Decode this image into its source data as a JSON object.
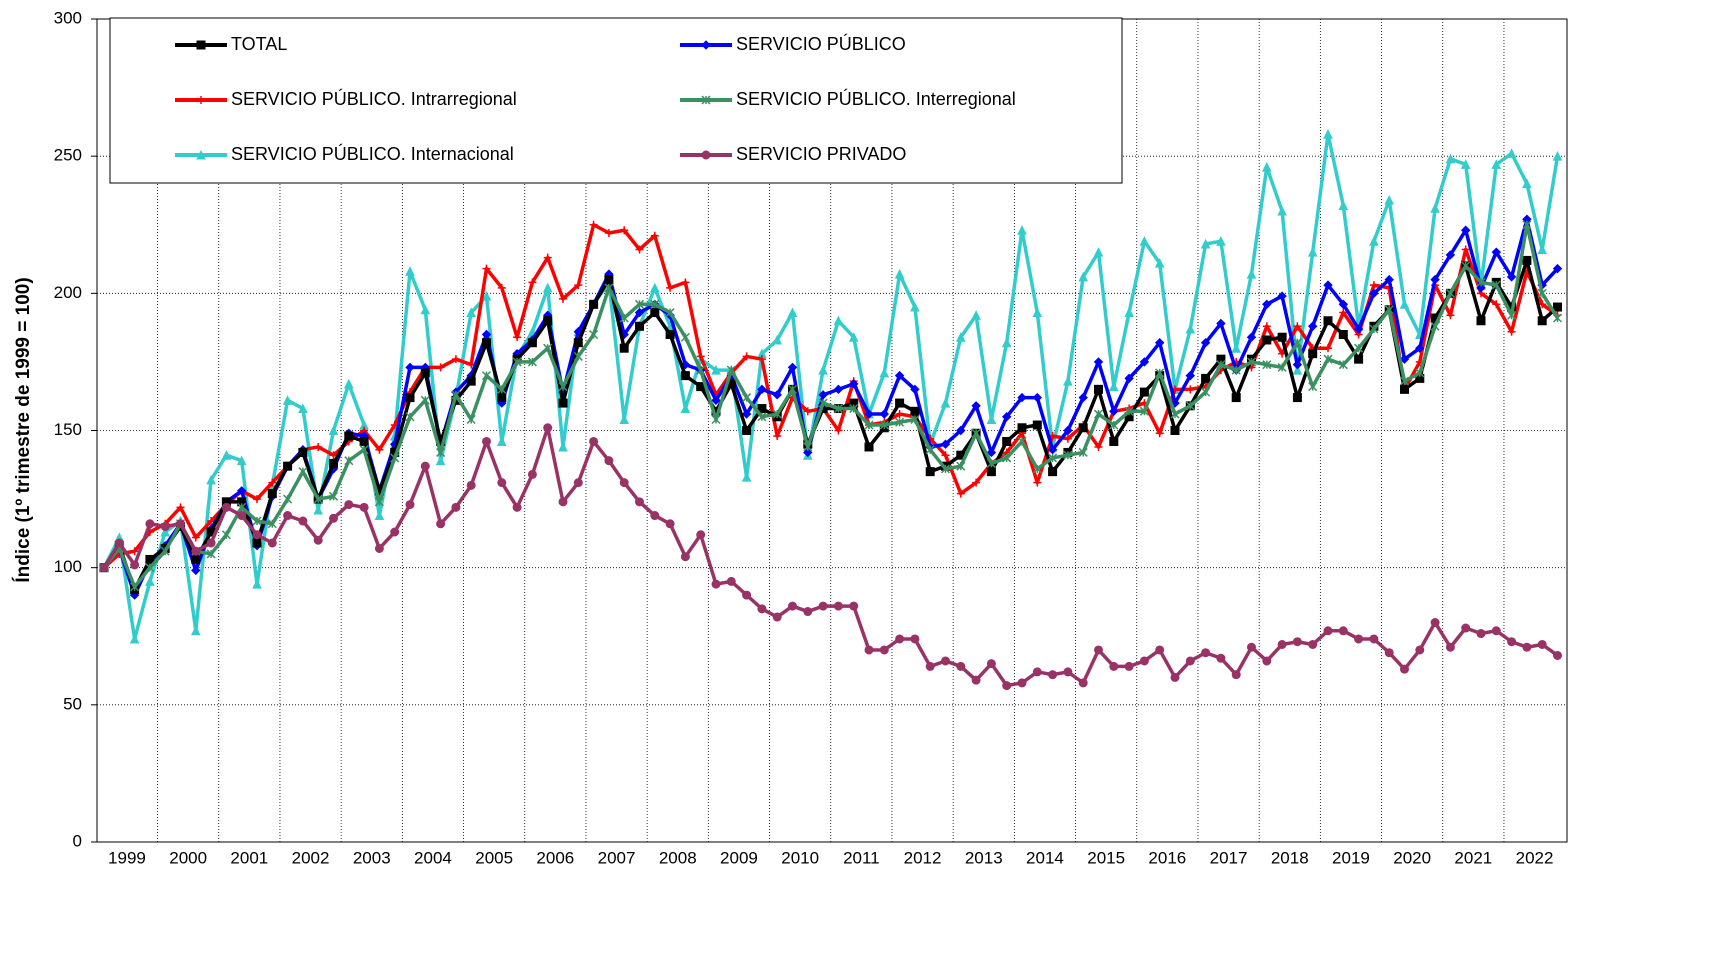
{
  "chart_data": {
    "type": "line",
    "y_label": "Índice (1º trimestre de 1999 = 100)",
    "ylim": [
      0,
      300
    ],
    "yticks": [
      0,
      50,
      100,
      150,
      200,
      250,
      300
    ],
    "grid": true,
    "categories": [
      "1999",
      null,
      null,
      null,
      "2000",
      null,
      null,
      null,
      "2001",
      null,
      null,
      null,
      "2002",
      null,
      null,
      null,
      "2003",
      null,
      null,
      null,
      "2004",
      null,
      null,
      null,
      "2005",
      null,
      null,
      null,
      "2006",
      null,
      null,
      null,
      "2007",
      null,
      null,
      null,
      "2008",
      null,
      null,
      null,
      "2009",
      null,
      null,
      null,
      "2010",
      null,
      null,
      null,
      "2011",
      null,
      null,
      null,
      "2012",
      null,
      null,
      null,
      "2013",
      null,
      null,
      null,
      "2014",
      null,
      null,
      null,
      "2015",
      null,
      null,
      null,
      "2016",
      null,
      null,
      null,
      "2017",
      null,
      null,
      null,
      "2018",
      null,
      null,
      null,
      "2019",
      null,
      null,
      null,
      "2020",
      null,
      null,
      null,
      "2021",
      null,
      null,
      null,
      "2022",
      null,
      null,
      null
    ],
    "series": [
      {
        "name": "SERVICIO PÚBLICO. Internacional",
        "color": "#33cccc",
        "marker": "triangle",
        "values": [
          100,
          111,
          74,
          95,
          113,
          117,
          77,
          132,
          141,
          139,
          94,
          130,
          161,
          158,
          121,
          150,
          167,
          152,
          119,
          148,
          208,
          194,
          139,
          162,
          193,
          199,
          146,
          177,
          186,
          202,
          144,
          186,
          196,
          204,
          154,
          188,
          202,
          188,
          158,
          176,
          172,
          172,
          133,
          178,
          183,
          193,
          141,
          172,
          190,
          184,
          156,
          171,
          207,
          195,
          145,
          160,
          184,
          192,
          154,
          182,
          223,
          193,
          144,
          168,
          206,
          215,
          166,
          193,
          219,
          211,
          165,
          187,
          218,
          219,
          180,
          207,
          246,
          230,
          172,
          215,
          258,
          232,
          188,
          219,
          234,
          196,
          185,
          231,
          249,
          247,
          203,
          247,
          251,
          240,
          216,
          250
        ]
      },
      {
        "name": "SERVICIO PÚBLICO. Intrarregional",
        "color": "#ff0000",
        "marker": "plus",
        "values": [
          100,
          105,
          106,
          113,
          116,
          122,
          111,
          117,
          123,
          128,
          125,
          131,
          137,
          143,
          144,
          141,
          146,
          150,
          143,
          152,
          164,
          173,
          173,
          176,
          174,
          209,
          202,
          184,
          204,
          213,
          198,
          203,
          225,
          222,
          223,
          216,
          221,
          202,
          204,
          177,
          163,
          171,
          177,
          176,
          148,
          162,
          157,
          158,
          150,
          168,
          152,
          153,
          156,
          155,
          147,
          141,
          127,
          131,
          138,
          142,
          149,
          131,
          148,
          147,
          152,
          144,
          157,
          158,
          160,
          149,
          165,
          165,
          166,
          172,
          175,
          173,
          188,
          178,
          188,
          180,
          180,
          193,
          185,
          203,
          202,
          165,
          175,
          203,
          192,
          216,
          200,
          196,
          186,
          208,
          196,
          192
        ]
      },
      {
        "name": "SERVICIO PÚBLICO",
        "color": "#0000ff",
        "marker": "diamond",
        "values": [
          100,
          107,
          90,
          102,
          108,
          116,
          99,
          114,
          124,
          128,
          108,
          126,
          137,
          143,
          125,
          136,
          149,
          148,
          128,
          145,
          173,
          173,
          145,
          164,
          170,
          185,
          160,
          178,
          183,
          192,
          164,
          186,
          196,
          207,
          185,
          193,
          196,
          192,
          174,
          172,
          161,
          170,
          156,
          165,
          163,
          173,
          142,
          163,
          165,
          167,
          156,
          156,
          170,
          165,
          144,
          145,
          150,
          159,
          142,
          155,
          162,
          162,
          143,
          150,
          162,
          175,
          157,
          169,
          175,
          182,
          160,
          170,
          182,
          189,
          172,
          184,
          196,
          199,
          174,
          188,
          203,
          196,
          187,
          200,
          205,
          176,
          180,
          205,
          214,
          223,
          202,
          215,
          206,
          227,
          203,
          209
        ]
      },
      {
        "name": "TOTAL",
        "color": "#000000",
        "marker": "square",
        "values": [
          100,
          108,
          92,
          103,
          107,
          115,
          103,
          113,
          124,
          124,
          109,
          127,
          137,
          142,
          125,
          138,
          148,
          146,
          128,
          142,
          162,
          171,
          146,
          161,
          168,
          182,
          162,
          176,
          182,
          190,
          160,
          182,
          196,
          205,
          180,
          188,
          193,
          185,
          170,
          166,
          157,
          167,
          150,
          158,
          155,
          165,
          145,
          158,
          158,
          160,
          144,
          151,
          160,
          157,
          135,
          137,
          141,
          149,
          135,
          146,
          151,
          152,
          135,
          142,
          151,
          165,
          146,
          155,
          164,
          170,
          150,
          159,
          169,
          176,
          162,
          176,
          183,
          184,
          162,
          178,
          190,
          185,
          176,
          188,
          194,
          165,
          169,
          191,
          200,
          210,
          190,
          204,
          195,
          212,
          190,
          195
        ]
      },
      {
        "name": "SERVICIO PÚBLICO. Interregional",
        "color": "#3a9060",
        "marker": "star",
        "values": [
          100,
          107,
          93,
          100,
          106,
          116,
          106,
          105,
          112,
          122,
          117,
          116,
          125,
          135,
          125,
          126,
          139,
          143,
          124,
          140,
          155,
          161,
          142,
          163,
          154,
          170,
          165,
          175,
          175,
          180,
          166,
          177,
          185,
          202,
          191,
          196,
          196,
          193,
          184,
          172,
          154,
          172,
          162,
          155,
          156,
          165,
          144,
          160,
          158,
          158,
          152,
          152,
          153,
          154,
          143,
          136,
          137,
          149,
          138,
          140,
          146,
          136,
          140,
          141,
          142,
          156,
          152,
          157,
          157,
          171,
          156,
          159,
          164,
          174,
          172,
          175,
          174,
          173,
          182,
          166,
          176,
          174,
          180,
          187,
          194,
          168,
          171,
          188,
          200,
          210,
          204,
          203,
          192,
          225,
          200,
          191
        ]
      },
      {
        "name": "SERVICIO PRIVADO",
        "color": "#993366",
        "marker": "circle",
        "values": [
          100,
          109,
          101,
          116,
          115,
          116,
          106,
          109,
          122,
          119,
          112,
          109,
          119,
          117,
          110,
          118,
          123,
          122,
          107,
          113,
          123,
          137,
          116,
          122,
          130,
          146,
          131,
          122,
          134,
          151,
          124,
          131,
          146,
          139,
          131,
          124,
          119,
          116,
          104,
          112,
          94,
          95,
          90,
          85,
          82,
          86,
          84,
          86,
          86,
          86,
          70,
          70,
          74,
          74,
          64,
          66,
          64,
          59,
          65,
          57,
          58,
          62,
          61,
          62,
          58,
          70,
          64,
          64,
          66,
          70,
          60,
          66,
          69,
          67,
          61,
          71,
          66,
          72,
          73,
          72,
          77,
          77,
          74,
          74,
          69,
          63,
          70,
          80,
          71,
          78,
          76,
          77,
          73,
          71,
          72,
          68
        ]
      }
    ]
  }
}
